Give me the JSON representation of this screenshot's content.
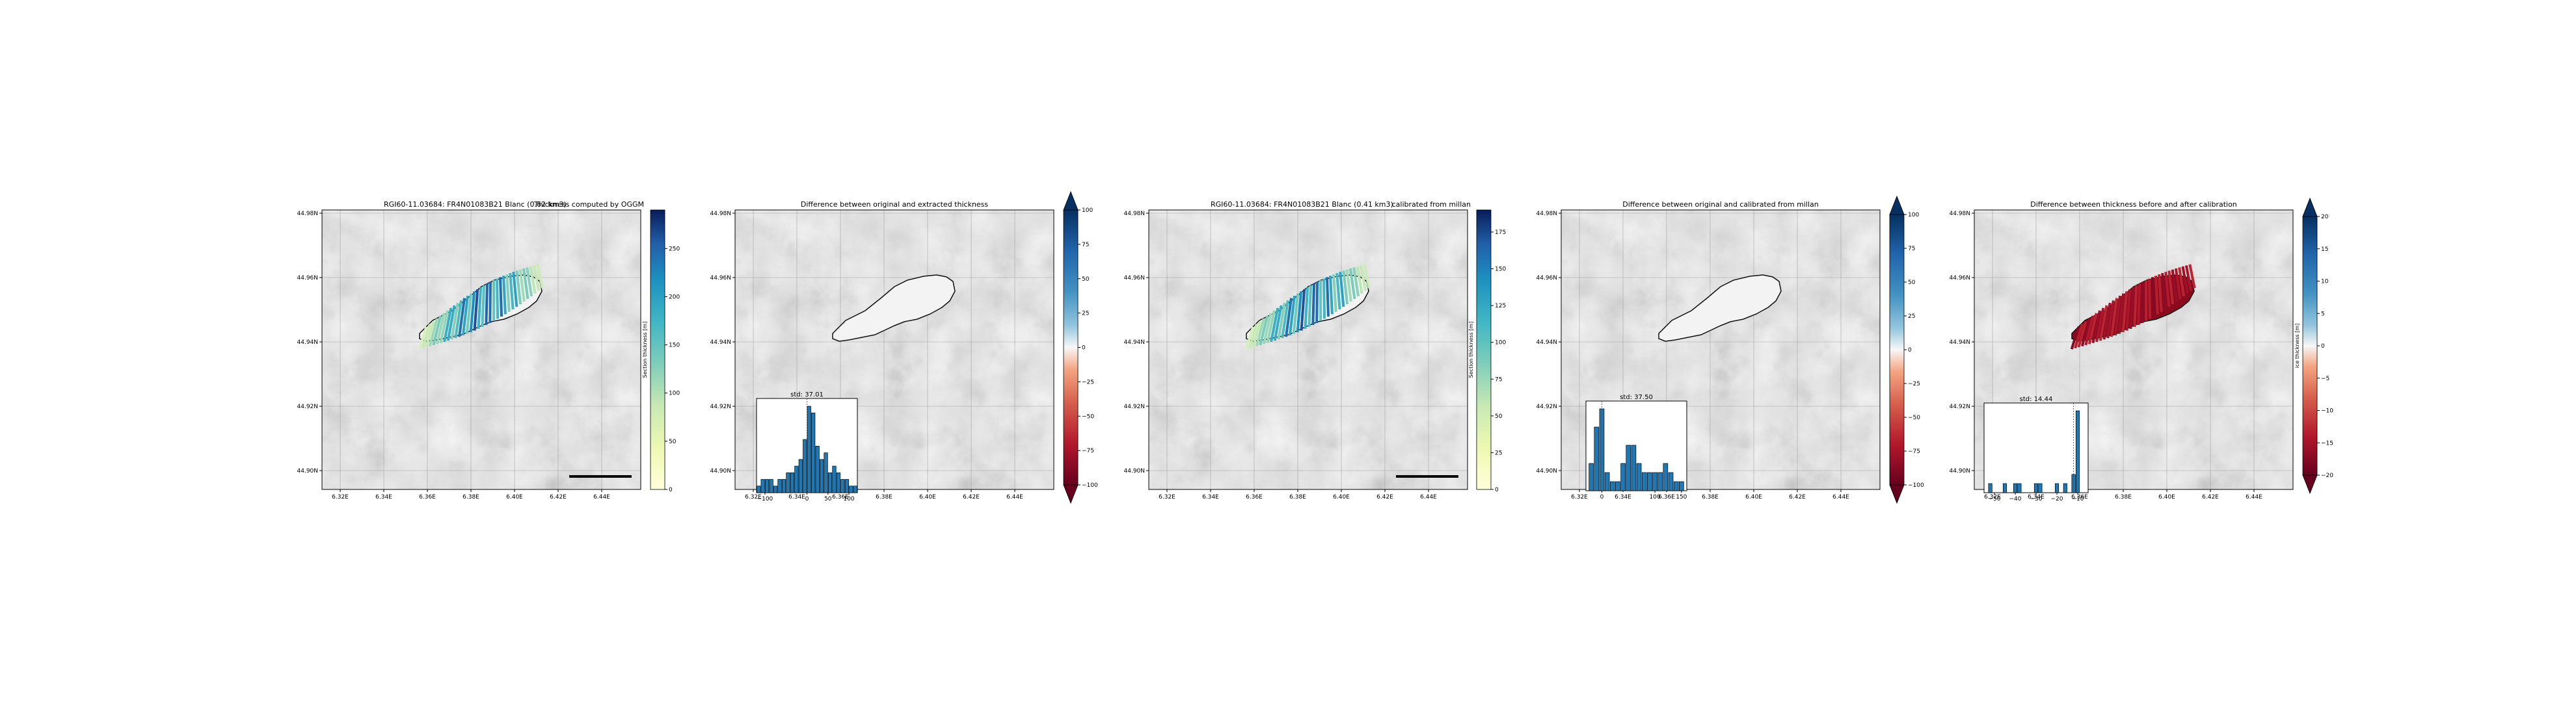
{
  "panels": [
    {
      "title_left": "RGI60-11.03684: FR4N01083B21 Blanc (0.62 km3)",
      "title_right": "Thickness computed by OGGM",
      "lon_ticks": [
        "6.32E",
        "6.34E",
        "6.36E",
        "6.38E",
        "6.40E",
        "6.42E",
        "6.44E"
      ],
      "lat_ticks": [
        "44.98N",
        "44.96N",
        "44.94N",
        "44.92N",
        "44.90N"
      ],
      "colorbar": {
        "kind": "thickness",
        "ticks": [
          "0",
          "50",
          "100",
          "150",
          "200",
          "250"
        ],
        "vmin": 0,
        "vmax": 290,
        "label": "Section thickness [m]"
      }
    },
    {
      "title_left": "",
      "title_right": "Difference between original and extracted thickness",
      "lon_ticks": [
        "6.32E",
        "6.34E",
        "6.36E",
        "6.38E",
        "6.40E",
        "6.42E",
        "6.44E"
      ],
      "lat_ticks": [
        "44.98N",
        "44.96N",
        "44.94N",
        "44.92N",
        "44.90N"
      ],
      "colorbar": {
        "kind": "diff",
        "ticks": [
          "100",
          "75",
          "50",
          "25",
          "0",
          "−25",
          "−50",
          "−75",
          "−100"
        ],
        "vmin": -100,
        "vmax": 100,
        "label": ""
      },
      "inset": {
        "std_label": "std: 37.01",
        "x_ticks": [
          "−100",
          "0",
          "50",
          "100"
        ]
      }
    },
    {
      "title_left": "RGI60-11.03684: FR4N01083B21 Blanc (0.41 km3)",
      "title_right": "calibrated from millan",
      "lon_ticks": [
        "6.32E",
        "6.34E",
        "6.36E",
        "6.38E",
        "6.40E",
        "6.42E",
        "6.44E"
      ],
      "lat_ticks": [
        "44.98N",
        "44.96N",
        "44.94N",
        "44.92N",
        "44.90N"
      ],
      "colorbar": {
        "kind": "thickness",
        "ticks": [
          "0",
          "25",
          "50",
          "75",
          "100",
          "125",
          "150",
          "175"
        ],
        "vmin": 0,
        "vmax": 190,
        "label": "Section thickness [m]"
      }
    },
    {
      "title_left": "",
      "title_right": "Difference between original and calibrated from millan",
      "lon_ticks": [
        "6.32E",
        "6.34E",
        "6.36E",
        "6.38E",
        "6.40E",
        "6.42E",
        "6.44E"
      ],
      "lat_ticks": [
        "44.98N",
        "44.96N",
        "44.94N",
        "44.92N",
        "44.90N"
      ],
      "colorbar": {
        "kind": "diff",
        "ticks": [
          "100",
          "75",
          "50",
          "25",
          "0",
          "−25",
          "−50",
          "−75",
          "−100"
        ],
        "vmin": -100,
        "vmax": 100,
        "label": ""
      },
      "inset": {
        "std_label": "std: 37.50",
        "x_ticks": [
          "0",
          "100",
          "150"
        ]
      }
    },
    {
      "title_left": "",
      "title_right": "Difference between thickness before and after calibration",
      "lon_ticks": [
        "6.32E",
        "6.34E",
        "6.36E",
        "6.38E",
        "6.40E",
        "6.42E",
        "6.44E"
      ],
      "lat_ticks": [
        "44.98N",
        "44.96N",
        "44.94N",
        "44.92N",
        "44.90N"
      ],
      "colorbar": {
        "kind": "diff",
        "ticks": [
          "20",
          "15",
          "10",
          "5",
          "0",
          "−5",
          "−10",
          "−15",
          "−20"
        ],
        "vmin": -20,
        "vmax": 20,
        "label": "ice thickness [m]"
      },
      "inset": {
        "std_label": "std: 14.44",
        "x_ticks": [
          "−50",
          "−40",
          "−30",
          "−20",
          "−10"
        ]
      }
    }
  ],
  "chart_data": [
    {
      "type": "histogram",
      "title": "std: 37.01",
      "bins_center": [
        -115,
        -105,
        -95,
        -85,
        -75,
        -65,
        -55,
        -45,
        -35,
        -25,
        -15,
        -5,
        5,
        15,
        25,
        35,
        45,
        55,
        65,
        75,
        85,
        95,
        105,
        115
      ],
      "counts": [
        1,
        2,
        2,
        2,
        1,
        2,
        2,
        3,
        3,
        4,
        5,
        8,
        13,
        12,
        7,
        5,
        6,
        3,
        4,
        3,
        2,
        2,
        1,
        1
      ]
    },
    {
      "type": "histogram",
      "title": "std: 37.50",
      "bins_center": [
        -20,
        -10,
        0,
        10,
        20,
        30,
        40,
        50,
        60,
        70,
        80,
        90,
        100,
        110,
        120,
        130,
        140,
        150
      ],
      "counts": [
        3,
        7,
        9,
        2,
        1,
        1,
        3,
        5,
        5,
        3,
        2,
        2,
        2,
        2,
        3,
        2,
        1,
        1
      ]
    },
    {
      "type": "histogram",
      "title": "std: 14.44",
      "bins_center": [
        -52,
        -50,
        -45,
        -40,
        -38,
        -34,
        -30,
        -28,
        -24,
        -20,
        -16,
        -12,
        -10,
        -8
      ],
      "counts": [
        1,
        0,
        1,
        1,
        1,
        0,
        1,
        1,
        0,
        1,
        1,
        2,
        9,
        0
      ]
    }
  ]
}
